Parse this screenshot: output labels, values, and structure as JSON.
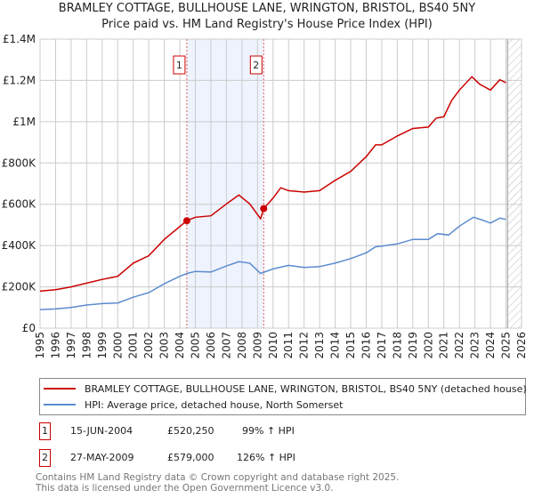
{
  "header": {
    "title_line1": "BRAMLEY COTTAGE, BULLHOUSE LANE, WRINGTON, BRISTOL, BS40 5NY",
    "title_line2": "Price paid vs. HM Land Registry's House Price Index (HPI)"
  },
  "chart_data": {
    "type": "line",
    "title": "Price paid vs. HM Land Registry's House Price Index (HPI)",
    "xlim": [
      1995,
      2026
    ],
    "ylim": [
      0,
      1400000
    ],
    "x_ticks": [
      "1995",
      "1996",
      "1997",
      "1998",
      "1999",
      "2000",
      "2001",
      "2002",
      "2003",
      "2004",
      "2005",
      "2006",
      "2007",
      "2008",
      "2009",
      "2010",
      "2011",
      "2012",
      "2013",
      "2014",
      "2015",
      "2016",
      "2017",
      "2018",
      "2019",
      "2020",
      "2021",
      "2022",
      "2023",
      "2024",
      "2025",
      "2026"
    ],
    "y_ticks": [
      {
        "value": 0,
        "label": "£0"
      },
      {
        "value": 200000,
        "label": "£200K"
      },
      {
        "value": 400000,
        "label": "£400K"
      },
      {
        "value": 600000,
        "label": "£600K"
      },
      {
        "value": 800000,
        "label": "£800K"
      },
      {
        "value": 1000000,
        "label": "£1M"
      },
      {
        "value": 1200000,
        "label": "£1.2M"
      },
      {
        "value": 1400000,
        "label": "£1.4M"
      }
    ],
    "grid": true,
    "shaded_range": [
      2004.45,
      2009.4
    ],
    "forecast_hatch_from": 2025.1,
    "colors": {
      "property": "#cc0000",
      "hpi": "#5b8bd0",
      "shade": "#eef3fd"
    },
    "series": [
      {
        "name": "BRAMLEY COTTAGE, BULLHOUSE LANE, WRINGTON, BRISTOL, BS40 5NY (detached house)",
        "key": "property",
        "x": [
          1995,
          1996,
          1997,
          1998,
          1999,
          2000,
          2001,
          2002,
          2003,
          2004.45,
          2005,
          2006,
          2007,
          2007.8,
          2008.5,
          2009.2,
          2009.4,
          2010,
          2010.5,
          2011,
          2012,
          2013,
          2014,
          2015,
          2016,
          2016.6,
          2017,
          2018,
          2019,
          2020,
          2020.5,
          2021,
          2021.5,
          2022,
          2022.8,
          2023.3,
          2024,
          2024.6,
          2025
        ],
        "y": [
          179000,
          186000,
          200000,
          218000,
          236000,
          251000,
          315000,
          351000,
          430000,
          520250,
          537000,
          544000,
          602000,
          645000,
          602000,
          530000,
          579000,
          630000,
          680000,
          666000,
          659000,
          666000,
          716000,
          759000,
          831000,
          888000,
          888000,
          931000,
          967000,
          974000,
          1017000,
          1024000,
          1103000,
          1153000,
          1218000,
          1182000,
          1153000,
          1203000,
          1189000
        ]
      },
      {
        "name": "HPI: Average price, detached house, North Somerset",
        "key": "hpi",
        "x": [
          1995,
          1996,
          1997,
          1998,
          1999,
          2000,
          2001,
          2002,
          2003,
          2004,
          2004.45,
          2005,
          2006,
          2007,
          2007.8,
          2008.5,
          2009.2,
          2010,
          2011,
          2012,
          2013,
          2014,
          2015,
          2016,
          2016.6,
          2017,
          2018,
          2019,
          2020,
          2020.6,
          2021.3,
          2022,
          2022.9,
          2023.5,
          2024,
          2024.6,
          2025
        ],
        "y": [
          90000,
          93000,
          100000,
          112000,
          119000,
          122000,
          150000,
          172000,
          215000,
          251000,
          265000,
          275000,
          272000,
          301000,
          322000,
          315000,
          265000,
          287000,
          304000,
          294000,
          298000,
          315000,
          337000,
          365000,
          394000,
          397000,
          408000,
          430000,
          430000,
          458000,
          451000,
          494000,
          537000,
          523000,
          509000,
          533000,
          527000
        ]
      }
    ],
    "sales": [
      {
        "label": "1",
        "x": 2004.45,
        "y": 520250
      },
      {
        "label": "2",
        "x": 2009.4,
        "y": 579000
      }
    ]
  },
  "legend": {
    "property": "BRAMLEY COTTAGE, BULLHOUSE LANE, WRINGTON, BRISTOL, BS40 5NY (detached house)",
    "hpi": "HPI: Average price, detached house, North Somerset"
  },
  "transactions": [
    {
      "num": "1",
      "date": "15-JUN-2004",
      "price": "£520,250",
      "hpi": "99% ↑ HPI"
    },
    {
      "num": "2",
      "date": "27-MAY-2009",
      "price": "£579,000",
      "hpi": "126% ↑ HPI"
    }
  ],
  "footer": {
    "line1": "Contains HM Land Registry data © Crown copyright and database right 2025.",
    "line2": "This data is licensed under the Open Government Licence v3.0."
  }
}
